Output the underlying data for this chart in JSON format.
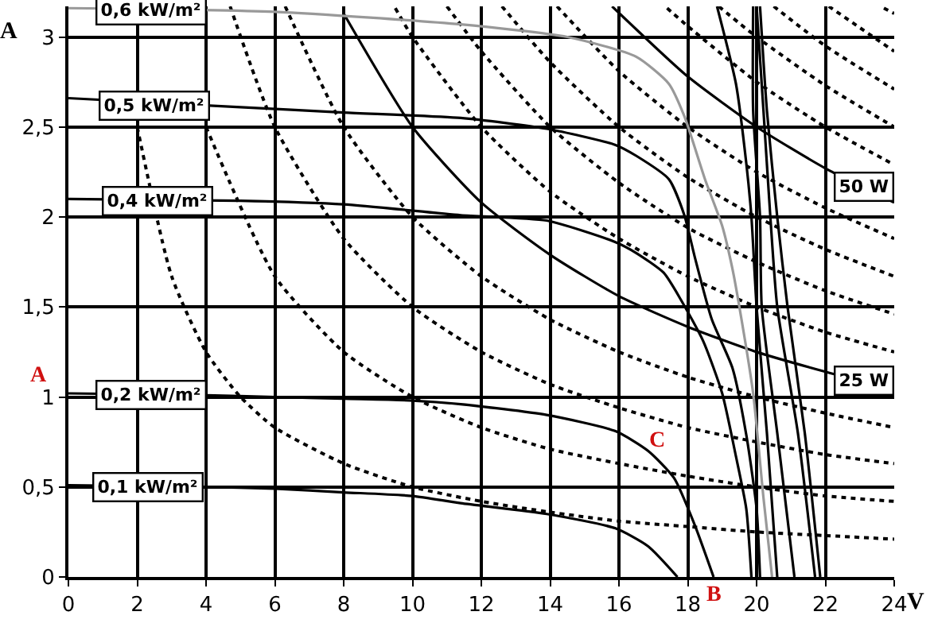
{
  "chart_data": {
    "type": "line",
    "xlabel": "V",
    "ylabel": "A",
    "xlim": [
      0,
      24
    ],
    "xticks": [
      0,
      2,
      4,
      6,
      8,
      10,
      12,
      14,
      16,
      18,
      20,
      22,
      24
    ],
    "ylim": [
      0,
      3.17
    ],
    "yticks": [
      0,
      {
        "value": 0.5,
        "label": "0,5"
      },
      1,
      {
        "value": 1.5,
        "label": "1,5"
      },
      2,
      {
        "value": 2.5,
        "label": "2,5"
      },
      3
    ],
    "grid": true,
    "marker": "none",
    "series": [
      {
        "color": "#000000",
        "line_style": "dotted",
        "x": [
          2,
          3,
          4,
          5,
          6,
          8,
          10,
          12,
          14,
          16,
          18,
          20,
          22,
          24
        ],
        "values": [
          2.5,
          1.67,
          1.25,
          1.0,
          0.83,
          0.63,
          0.5,
          0.42,
          0.36,
          0.31,
          0.28,
          0.25,
          0.23,
          0.21
        ]
      },
      {
        "color": "#000000",
        "line_style": "dotted",
        "x": [
          4,
          6,
          8,
          10,
          12,
          14,
          16,
          18,
          20,
          22,
          24
        ],
        "values": [
          2.5,
          1.67,
          1.25,
          1.0,
          0.83,
          0.71,
          0.63,
          0.56,
          0.5,
          0.45,
          0.42
        ]
      },
      {
        "color": "#000000",
        "line_style": "dotted",
        "x": [
          4.7,
          6,
          8,
          10,
          12,
          14,
          16,
          18,
          20,
          22,
          24
        ],
        "values": [
          3.17,
          2.5,
          1.88,
          1.5,
          1.25,
          1.07,
          0.94,
          0.83,
          0.75,
          0.68,
          0.63
        ]
      },
      {
        "color": "#000000",
        "line_style": "dotted",
        "x": [
          6.3,
          8,
          10,
          12,
          14,
          16,
          18,
          20,
          22,
          24
        ],
        "values": [
          3.17,
          2.5,
          2.0,
          1.67,
          1.43,
          1.25,
          1.11,
          1.0,
          0.91,
          0.83
        ]
      },
      {
        "color": "#000000",
        "line_style": "solid",
        "x": [
          8,
          10,
          12,
          14,
          16,
          18,
          20,
          22,
          24
        ],
        "values": [
          3.13,
          2.5,
          2.08,
          1.79,
          1.56,
          1.39,
          1.25,
          1.14,
          1.04
        ]
      },
      {
        "color": "#000000",
        "line_style": "dotted",
        "x": [
          9.5,
          10,
          12,
          14,
          16,
          18,
          20,
          22,
          24
        ],
        "values": [
          3.16,
          3.0,
          2.5,
          2.14,
          1.88,
          1.67,
          1.5,
          1.36,
          1.25
        ]
      },
      {
        "color": "#000000",
        "line_style": "dotted",
        "x": [
          11.0,
          12,
          14,
          16,
          18,
          20,
          22,
          24
        ],
        "values": [
          3.17,
          2.92,
          2.5,
          2.19,
          1.94,
          1.75,
          1.59,
          1.46
        ]
      },
      {
        "color": "#000000",
        "line_style": "dotted",
        "x": [
          12.6,
          14,
          16,
          18,
          20,
          22,
          24
        ],
        "values": [
          3.17,
          2.86,
          2.5,
          2.22,
          2.0,
          1.82,
          1.67
        ]
      },
      {
        "color": "#000000",
        "line_style": "dotted",
        "x": [
          14.2,
          16,
          18,
          20,
          22,
          24
        ],
        "values": [
          3.17,
          2.81,
          2.5,
          2.25,
          2.05,
          1.88
        ]
      },
      {
        "color": "#000000",
        "line_style": "solid",
        "x": [
          15.8,
          18,
          20,
          22,
          24
        ],
        "values": [
          3.17,
          2.78,
          2.5,
          2.27,
          2.08
        ]
      },
      {
        "color": "#000000",
        "line_style": "dotted",
        "x": [
          17.4,
          18,
          20,
          22,
          24
        ],
        "values": [
          3.16,
          3.06,
          2.75,
          2.5,
          2.29
        ]
      },
      {
        "color": "#000000",
        "line_style": "dotted",
        "x": [
          18.9,
          20,
          22,
          24
        ],
        "values": [
          3.17,
          3.0,
          2.73,
          2.5
        ]
      },
      {
        "color": "#000000",
        "line_style": "dotted",
        "x": [
          20.5,
          22,
          24
        ],
        "values": [
          3.17,
          2.95,
          2.71
        ]
      },
      {
        "color": "#000000",
        "line_style": "dotted",
        "x": [
          22.1,
          24
        ],
        "values": [
          3.17,
          2.92
        ]
      },
      {
        "color": "#000000",
        "line_style": "dotted",
        "x": [
          23.7,
          24
        ],
        "values": [
          3.16,
          3.13
        ]
      },
      {
        "color": "#000000",
        "line_style": "solid",
        "x": [
          0,
          4,
          6,
          8,
          10,
          11.4,
          13.9,
          15.9,
          16.85,
          17.7
        ],
        "values": [
          0.51,
          0.5,
          0.49,
          0.47,
          0.45,
          0.41,
          0.35,
          0.27,
          0.17,
          0
        ]
      },
      {
        "color": "#000000",
        "line_style": "solid",
        "x": [
          0,
          4,
          6,
          8,
          10,
          11.4,
          13.9,
          15.9,
          16.85,
          17.6,
          18.2,
          18.75
        ],
        "values": [
          1.02,
          1.01,
          1.0,
          0.99,
          0.98,
          0.96,
          0.9,
          0.81,
          0.7,
          0.55,
          0.29,
          0
        ]
      },
      {
        "color": "#000000",
        "line_style": "solid",
        "x": [
          0,
          5,
          8,
          11.4,
          13.9,
          15.9,
          16.5,
          17.3,
          17.8,
          18.45,
          19.0,
          19.4,
          19.7,
          19.85
        ],
        "values": [
          2.1,
          2.09,
          2.07,
          2.01,
          1.98,
          1.86,
          1.8,
          1.69,
          1.54,
          1.31,
          1.02,
          0.67,
          0.38,
          0
        ]
      },
      {
        "color": "#000000",
        "line_style": "solid",
        "x": [
          0,
          5,
          8,
          11.4,
          13.9,
          15.9,
          16.5,
          17.45,
          17.9,
          18.2,
          18.7,
          19.3,
          19.7,
          20.0,
          20.1
        ],
        "values": [
          2.66,
          2.61,
          2.58,
          2.55,
          2.49,
          2.4,
          2.34,
          2.21,
          2.01,
          1.78,
          1.43,
          1.16,
          0.79,
          0.38,
          0
        ]
      },
      {
        "color": "#999999",
        "line_style": "solid",
        "x": [
          0,
          6,
          11.4,
          14.5,
          16.5,
          17.45,
          17.9,
          18.5,
          19.0,
          19.3,
          19.5,
          19.9,
          20.2,
          20.45
        ],
        "values": [
          3.16,
          3.14,
          3.07,
          3.0,
          2.89,
          2.74,
          2.56,
          2.21,
          1.95,
          1.71,
          1.5,
          1.02,
          0.44,
          0
        ]
      },
      {
        "color": "#000000",
        "line_style": "solid",
        "x": [
          18.85,
          19.4,
          19.7,
          19.85,
          20.0,
          20.3,
          20.6
        ],
        "values": [
          3.17,
          2.74,
          2.3,
          2.0,
          1.5,
          0.8,
          0
        ]
      },
      {
        "color": "#000000",
        "line_style": "solid",
        "x": [
          19.9,
          19.9,
          20.1,
          20.15,
          20.6,
          21.1
        ],
        "values": [
          3.17,
          2.59,
          2.0,
          1.5,
          0.8,
          0
        ]
      },
      {
        "color": "#000000",
        "line_style": "solid",
        "x": [
          20.0,
          20.2,
          20.4,
          20.6,
          21.2,
          21.7
        ],
        "values": [
          3.17,
          2.59,
          2.0,
          1.5,
          0.8,
          0
        ]
      },
      {
        "color": "#000000",
        "line_style": "solid",
        "x": [
          20.1,
          20.3,
          20.6,
          20.9,
          21.4,
          21.85
        ],
        "values": [
          3.17,
          2.59,
          2.0,
          1.5,
          0.8,
          0
        ]
      }
    ],
    "annotations": [
      {
        "text": "0,6 kW/m²",
        "x": 2.4,
        "y": 3.15
      },
      {
        "text": "0,5 kW/m²",
        "x": 2.5,
        "y": 2.62
      },
      {
        "text": "0,4 kW/m²",
        "x": 2.6,
        "y": 2.09
      },
      {
        "text": "0,2 kW/m²",
        "x": 2.4,
        "y": 1.01
      },
      {
        "text": "0,1 kW/m²",
        "x": 2.3,
        "y": 0.5
      },
      {
        "text": "50 W",
        "x": 23.1,
        "y": 2.17
      },
      {
        "text": "25 W",
        "x": 23.1,
        "y": 1.09
      },
      "A",
      "B",
      "C"
    ]
  }
}
